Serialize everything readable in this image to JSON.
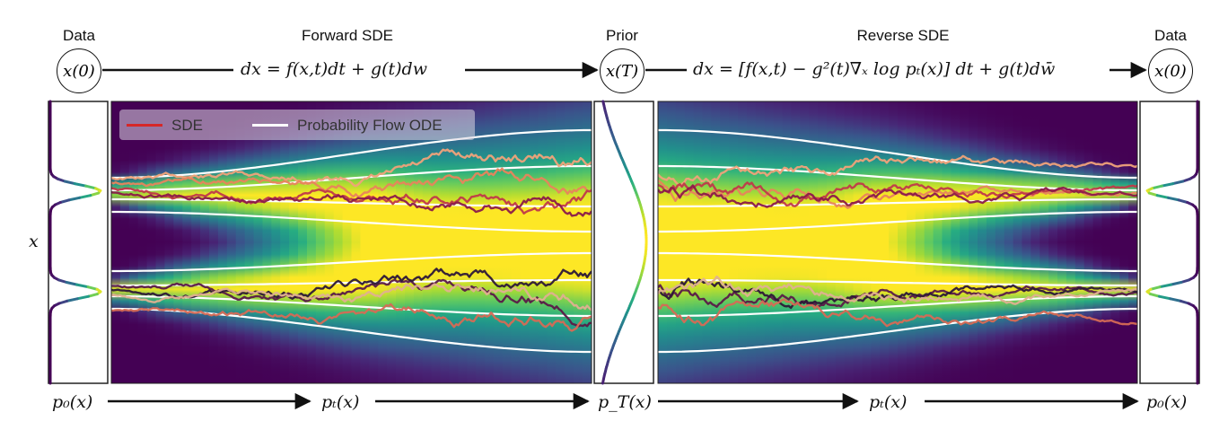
{
  "titles": {
    "data_left": "Data",
    "forward": "Forward SDE",
    "prior": "Prior",
    "reverse": "Reverse SDE",
    "data_right": "Data"
  },
  "nodes": {
    "x0_left": "x(0)",
    "xT": "x(T)",
    "x0_right": "x(0)"
  },
  "equations": {
    "forward": "dx = f(x,t)dt + g(t)dw",
    "reverse": "dx = [f(x,t) − g²(t)∇ₓ log pₜ(x)] dt + g(t)dw̄"
  },
  "axis_label": "x",
  "legend": {
    "sde": "SDE",
    "ode": "Probability Flow ODE"
  },
  "bottom_labels": {
    "p0_left": "p₀(x)",
    "pt_left": "pₜ(x)",
    "pT": "p_T(x)",
    "pt_right": "pₜ(x)",
    "p0_right": "p₀(x)"
  },
  "colors": {
    "background_dark": "#440154",
    "background_mid": "#21918c",
    "background_bright": "#fde725",
    "sde_line": "#d62728",
    "ode_line": "#ffffff",
    "trajectories": [
      "#f0a27a",
      "#e8845c",
      "#c0394a",
      "#8b1a4a",
      "#5a1a48",
      "#2d1838",
      "#e0b090",
      "#d66a55"
    ]
  }
}
